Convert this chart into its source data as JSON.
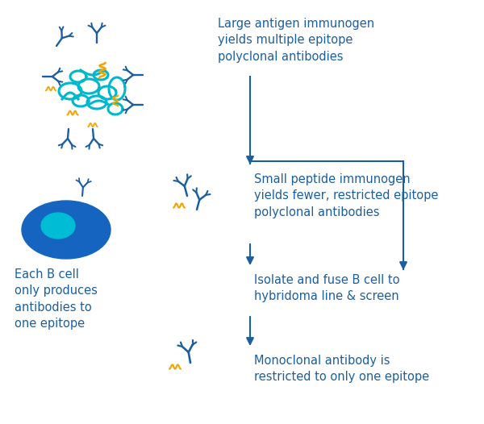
{
  "bg_color": "#ffffff",
  "arrow_color": "#1b5fa0",
  "text_color": "#1b5fa0",
  "teal_color": "#00b8cc",
  "gold_color": "#f0a500",
  "dark_blue_ab": "#1b5fa0",
  "bcell_outer": "#1565c0",
  "bcell_inner": "#00bcd4",
  "label1": "Large antigen immunogen\nyields multiple epitope\npolyclonal antibodies",
  "label2": "Small peptide immunogen\nyields fewer, restricted epitope\npolyclonal antibodies",
  "label3": "Isolate and fuse B cell to\nhybridoma line & screen",
  "label4": "Monoclonal antibody is\nrestricted to only one epitope",
  "label5": "Each B cell\nonly produces\nantibodies to\none epitope",
  "font_size_main": 10.5,
  "font_size_side": 10.5
}
